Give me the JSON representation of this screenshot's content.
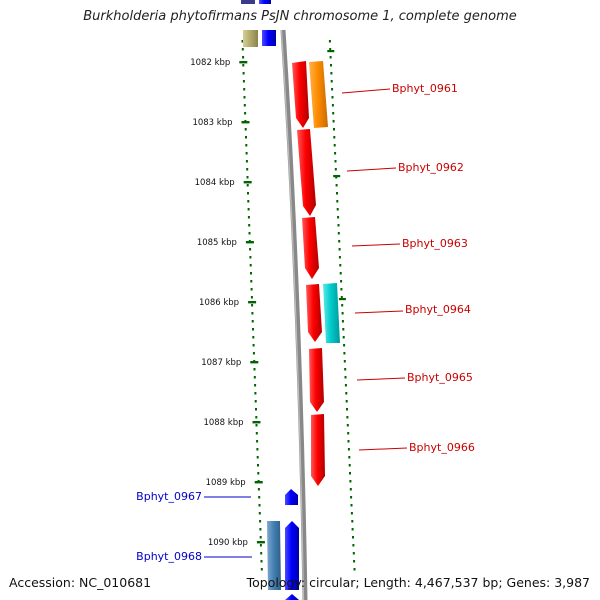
{
  "title": "Burkholderia phytofirmans PsJN chromosome 1, complete genome",
  "footer": {
    "accession": "Accession: NC_010681",
    "topology": "Topology: circular; Length: 4,467,537 bp; Genes: 3,987"
  },
  "axis": {
    "unit": "kbp",
    "ticks": [
      "1082 kbp",
      "1083 kbp",
      "1084 kbp",
      "1085 kbp",
      "1086 kbp",
      "1087 kbp",
      "1088 kbp",
      "1089 kbp",
      "1090 kbp"
    ]
  },
  "genes_right": [
    {
      "label": "Bphyt_0961",
      "color": "#cc0000"
    },
    {
      "label": "Bphyt_0962",
      "color": "#cc0000"
    },
    {
      "label": "Bphyt_0963",
      "color": "#cc0000"
    },
    {
      "label": "Bphyt_0964",
      "color": "#cc0000"
    },
    {
      "label": "Bphyt_0965",
      "color": "#cc0000"
    },
    {
      "label": "Bphyt_0966",
      "color": "#cc0000"
    }
  ],
  "genes_left": [
    {
      "label": "Bphyt_0967",
      "color": "#0000cc"
    },
    {
      "label": "Bphyt_0968",
      "color": "#0000cc"
    }
  ],
  "colors": {
    "gene_forward": "#ff0000",
    "gene_reverse": "#0000ff",
    "orange_feature": "#ff8c00",
    "cyan_feature": "#00cccc",
    "steel_feature": "#4682b4",
    "olive_feature": "#b5ad6e",
    "tick_green": "#006400",
    "backbone": "#888888"
  }
}
